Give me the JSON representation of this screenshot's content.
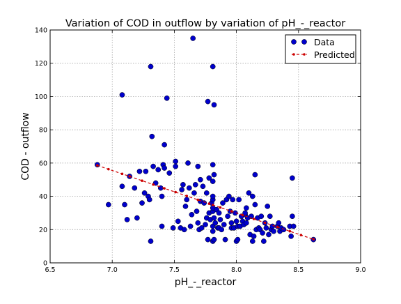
{
  "chart_data": {
    "type": "scatter",
    "title": "Variation of COD in outflow by variation of pH_-_reactor",
    "xlabel": "pH_-_reactor",
    "ylabel": "COD - outflow",
    "xlim": [
      6.5,
      9.0
    ],
    "ylim": [
      0,
      140
    ],
    "xticks": [
      6.5,
      7.0,
      7.5,
      8.0,
      8.5,
      9.0
    ],
    "xtick_labels": [
      "6.5",
      "7.0",
      "7.5",
      "8.0",
      "8.5",
      "9.0"
    ],
    "yticks": [
      0,
      20,
      40,
      60,
      80,
      100,
      120,
      140
    ],
    "ytick_labels": [
      "0",
      "20",
      "40",
      "60",
      "80",
      "100",
      "120",
      "140"
    ],
    "grid": true,
    "legend_position": "top-right",
    "colors": {
      "data": "#0000cc",
      "predicted": "#cc0000"
    },
    "series": [
      {
        "name": "Data",
        "kind": "scatter",
        "points": [
          [
            6.88,
            59
          ],
          [
            6.97,
            35
          ],
          [
            7.08,
            101
          ],
          [
            7.08,
            46
          ],
          [
            7.1,
            35
          ],
          [
            7.12,
            26
          ],
          [
            7.14,
            52
          ],
          [
            7.18,
            45
          ],
          [
            7.2,
            27
          ],
          [
            7.22,
            55
          ],
          [
            7.24,
            36
          ],
          [
            7.26,
            42
          ],
          [
            7.27,
            55
          ],
          [
            7.29,
            40
          ],
          [
            7.3,
            38
          ],
          [
            7.31,
            118
          ],
          [
            7.31,
            13
          ],
          [
            7.32,
            76
          ],
          [
            7.33,
            58
          ],
          [
            7.35,
            48
          ],
          [
            7.37,
            56
          ],
          [
            7.39,
            45
          ],
          [
            7.4,
            40
          ],
          [
            7.4,
            22
          ],
          [
            7.41,
            59
          ],
          [
            7.42,
            57
          ],
          [
            7.42,
            71
          ],
          [
            7.44,
            99
          ],
          [
            7.46,
            54
          ],
          [
            7.49,
            21
          ],
          [
            7.51,
            61
          ],
          [
            7.51,
            58
          ],
          [
            7.53,
            25
          ],
          [
            7.55,
            21
          ],
          [
            7.56,
            44
          ],
          [
            7.57,
            47
          ],
          [
            7.58,
            20
          ],
          [
            7.59,
            34
          ],
          [
            7.6,
            38
          ],
          [
            7.61,
            60
          ],
          [
            7.62,
            45
          ],
          [
            7.63,
            22
          ],
          [
            7.64,
            29
          ],
          [
            7.65,
            135
          ],
          [
            7.66,
            42
          ],
          [
            7.67,
            47
          ],
          [
            7.68,
            31
          ],
          [
            7.69,
            58
          ],
          [
            7.69,
            24
          ],
          [
            7.7,
            20
          ],
          [
            7.71,
            37
          ],
          [
            7.71,
            50
          ],
          [
            7.72,
            21
          ],
          [
            7.73,
            46
          ],
          [
            7.74,
            36
          ],
          [
            7.75,
            23
          ],
          [
            7.76,
            42
          ],
          [
            7.76,
            27
          ],
          [
            7.77,
            97
          ],
          [
            7.77,
            14
          ],
          [
            7.78,
            30
          ],
          [
            7.78,
            51
          ],
          [
            7.79,
            26
          ],
          [
            7.8,
            36
          ],
          [
            7.81,
            31
          ],
          [
            7.81,
            118
          ],
          [
            7.81,
            38
          ],
          [
            7.81,
            49
          ],
          [
            7.81,
            59
          ],
          [
            7.81,
            40
          ],
          [
            7.81,
            33
          ],
          [
            7.81,
            22
          ],
          [
            7.81,
            19
          ],
          [
            7.81,
            13
          ],
          [
            7.82,
            95
          ],
          [
            7.82,
            53
          ],
          [
            7.82,
            27
          ],
          [
            7.82,
            14
          ],
          [
            7.83,
            24
          ],
          [
            7.84,
            32
          ],
          [
            7.85,
            21
          ],
          [
            7.86,
            30
          ],
          [
            7.86,
            21
          ],
          [
            7.87,
            26
          ],
          [
            7.88,
            20
          ],
          [
            7.89,
            36
          ],
          [
            7.9,
            23
          ],
          [
            7.91,
            14
          ],
          [
            7.92,
            38
          ],
          [
            7.93,
            28
          ],
          [
            7.94,
            40
          ],
          [
            7.95,
            31
          ],
          [
            7.96,
            21
          ],
          [
            7.96,
            24
          ],
          [
            7.97,
            38
          ],
          [
            7.98,
            21
          ],
          [
            7.99,
            30
          ],
          [
            8.0,
            13
          ],
          [
            8.0,
            25
          ],
          [
            8.01,
            14
          ],
          [
            8.01,
            22
          ],
          [
            8.02,
            38
          ],
          [
            8.03,
            22
          ],
          [
            8.04,
            28
          ],
          [
            8.05,
            25
          ],
          [
            8.06,
            23
          ],
          [
            8.07,
            29
          ],
          [
            8.07,
            30
          ],
          [
            8.08,
            33
          ],
          [
            8.08,
            24
          ],
          [
            8.09,
            27
          ],
          [
            8.1,
            42
          ],
          [
            8.11,
            17
          ],
          [
            8.12,
            28
          ],
          [
            8.13,
            40
          ],
          [
            8.13,
            13
          ],
          [
            8.14,
            16
          ],
          [
            8.15,
            53
          ],
          [
            8.15,
            35
          ],
          [
            8.16,
            20
          ],
          [
            8.17,
            27
          ],
          [
            8.18,
            21
          ],
          [
            8.19,
            20
          ],
          [
            8.2,
            28
          ],
          [
            8.21,
            18
          ],
          [
            8.22,
            13
          ],
          [
            8.23,
            24
          ],
          [
            8.24,
            21
          ],
          [
            8.25,
            34
          ],
          [
            8.26,
            17
          ],
          [
            8.27,
            28
          ],
          [
            8.28,
            20
          ],
          [
            8.29,
            22
          ],
          [
            8.3,
            19
          ],
          [
            8.33,
            22
          ],
          [
            8.34,
            24
          ],
          [
            8.35,
            19
          ],
          [
            8.36,
            21
          ],
          [
            8.38,
            20
          ],
          [
            8.43,
            22
          ],
          [
            8.44,
            16
          ],
          [
            8.45,
            51
          ],
          [
            8.45,
            28
          ],
          [
            8.46,
            22
          ],
          [
            8.62,
            14
          ]
        ]
      },
      {
        "name": "Predicted",
        "kind": "line",
        "line_style": "dashed",
        "marker": "dot",
        "points": [
          [
            6.88,
            58.6
          ],
          [
            6.97,
            56.3
          ],
          [
            7.08,
            53.5
          ],
          [
            7.14,
            52.0
          ],
          [
            7.24,
            49.4
          ],
          [
            7.33,
            47.1
          ],
          [
            7.42,
            44.8
          ],
          [
            7.51,
            42.5
          ],
          [
            7.6,
            40.2
          ],
          [
            7.69,
            37.9
          ],
          [
            7.78,
            35.6
          ],
          [
            7.81,
            34.8
          ],
          [
            7.87,
            33.3
          ],
          [
            7.96,
            31.0
          ],
          [
            8.05,
            28.7
          ],
          [
            8.14,
            26.4
          ],
          [
            8.23,
            24.1
          ],
          [
            8.33,
            21.6
          ],
          [
            8.43,
            19.0
          ],
          [
            8.52,
            16.7
          ],
          [
            8.62,
            14.2
          ]
        ]
      }
    ]
  }
}
